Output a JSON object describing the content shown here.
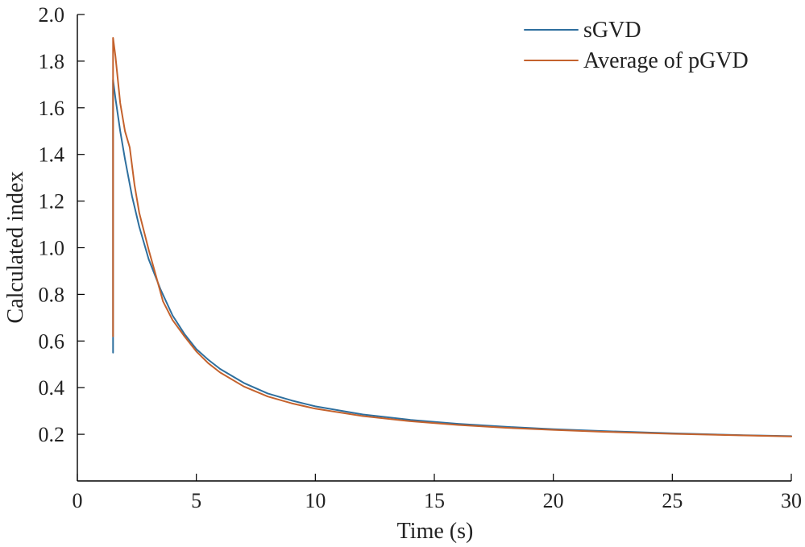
{
  "chart_data": {
    "type": "line",
    "title": "",
    "xlabel": "Time (s)",
    "ylabel": "Calculated index",
    "xlim": [
      0,
      30
    ],
    "ylim": [
      0.0,
      2.0
    ],
    "xticks": [
      0,
      5,
      10,
      15,
      20,
      25,
      30
    ],
    "yticks": [
      0.2,
      0.4,
      0.6,
      0.8,
      1.0,
      1.2,
      1.4,
      1.6,
      1.8,
      2.0
    ],
    "ytick_labels": [
      "0.2",
      "0.4",
      "0.6",
      "0.8",
      "1.0",
      "1.2",
      "1.4",
      "1.6",
      "1.8",
      "2.0"
    ],
    "grid": false,
    "legend_position": "top-right",
    "series": [
      {
        "name": "sGVD",
        "color": "#2e6f9e",
        "x": [
          1.5,
          1.5,
          1.6,
          1.8,
          2.0,
          2.3,
          2.6,
          3.0,
          3.5,
          4.0,
          4.5,
          5.0,
          5.5,
          6.0,
          7.0,
          8.0,
          9.0,
          10.0,
          12.0,
          14.0,
          16.0,
          18.0,
          20.0,
          22.0,
          25.0,
          28.0,
          30.0
        ],
        "y": [
          0.55,
          1.72,
          1.64,
          1.5,
          1.38,
          1.22,
          1.09,
          0.95,
          0.82,
          0.71,
          0.63,
          0.565,
          0.52,
          0.48,
          0.42,
          0.375,
          0.345,
          0.32,
          0.285,
          0.262,
          0.245,
          0.232,
          0.222,
          0.214,
          0.204,
          0.196,
          0.192
        ]
      },
      {
        "name": "Average of pGVD",
        "color": "#c4622d",
        "x": [
          1.5,
          1.5,
          1.6,
          1.8,
          2.0,
          2.2,
          2.4,
          2.6,
          2.8,
          3.0,
          3.3,
          3.6,
          4.0,
          4.5,
          5.0,
          5.5,
          6.0,
          7.0,
          8.0,
          9.0,
          10.0,
          12.0,
          14.0,
          16.0,
          18.0,
          20.0,
          22.0,
          25.0,
          28.0,
          30.0
        ],
        "y": [
          0.62,
          1.9,
          1.82,
          1.62,
          1.5,
          1.43,
          1.27,
          1.15,
          1.07,
          0.99,
          0.88,
          0.77,
          0.69,
          0.62,
          0.555,
          0.505,
          0.465,
          0.405,
          0.362,
          0.333,
          0.31,
          0.278,
          0.256,
          0.24,
          0.228,
          0.219,
          0.211,
          0.202,
          0.195,
          0.191
        ]
      }
    ]
  }
}
